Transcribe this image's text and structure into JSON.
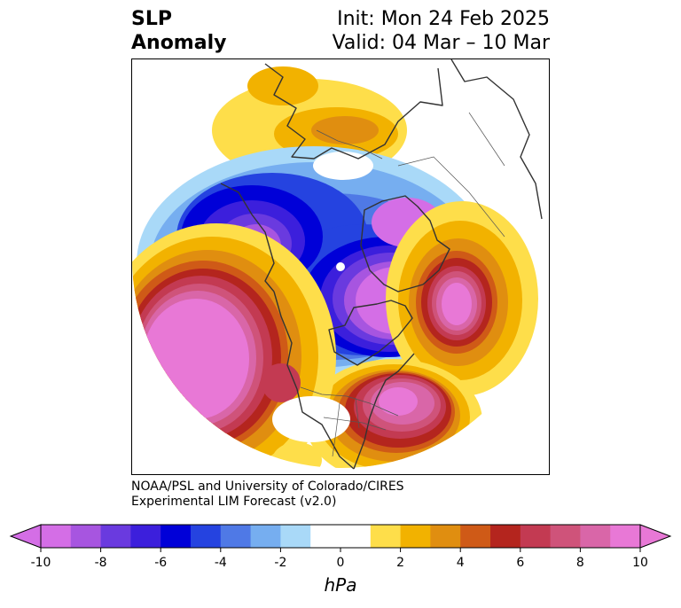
{
  "title": {
    "left_line1": "SLP",
    "left_line2": "Anomaly",
    "right_line1": "Init: Mon 24 Feb 2025",
    "right_line2": "Valid: 04 Mar – 10 Mar"
  },
  "credit": {
    "line1": "NOAA/PSL and University of Colorado/CIRES",
    "line2": "Experimental LIM Forecast (v2.0)"
  },
  "colorbar": {
    "units": "hPa",
    "ticks": [
      "-10",
      "-8",
      "-6",
      "-4",
      "-2",
      "0",
      "2",
      "4",
      "6",
      "8",
      "10"
    ],
    "colors": [
      "#d46ee6",
      "#a755e0",
      "#6a3adf",
      "#3c1fdc",
      "#0000d8",
      "#2543e0",
      "#4f79e6",
      "#76aef0",
      "#a9d9f8",
      "#ffffff",
      "#ffffff",
      "#fede4a",
      "#f2b200",
      "#e08e10",
      "#cf5a17",
      "#b4251e",
      "#c33a52",
      "#cf537a",
      "#d966a8",
      "#e878d6"
    ]
  },
  "map": {
    "anomaly_centers": [
      {
        "name": "NE Pacific high",
        "sign": "positive",
        "peak_hpa": 10
      },
      {
        "name": "Northern Canada low",
        "sign": "negative",
        "peak_hpa": -10
      },
      {
        "name": "Eastern Siberia low",
        "sign": "negative",
        "peak_hpa": -10
      },
      {
        "name": "North Atlantic high",
        "sign": "positive",
        "peak_hpa": 10
      },
      {
        "name": "Western Atlantic high",
        "sign": "positive",
        "peak_hpa": 9
      },
      {
        "name": "Northern Europe high",
        "sign": "positive",
        "peak_hpa": 4
      }
    ]
  }
}
